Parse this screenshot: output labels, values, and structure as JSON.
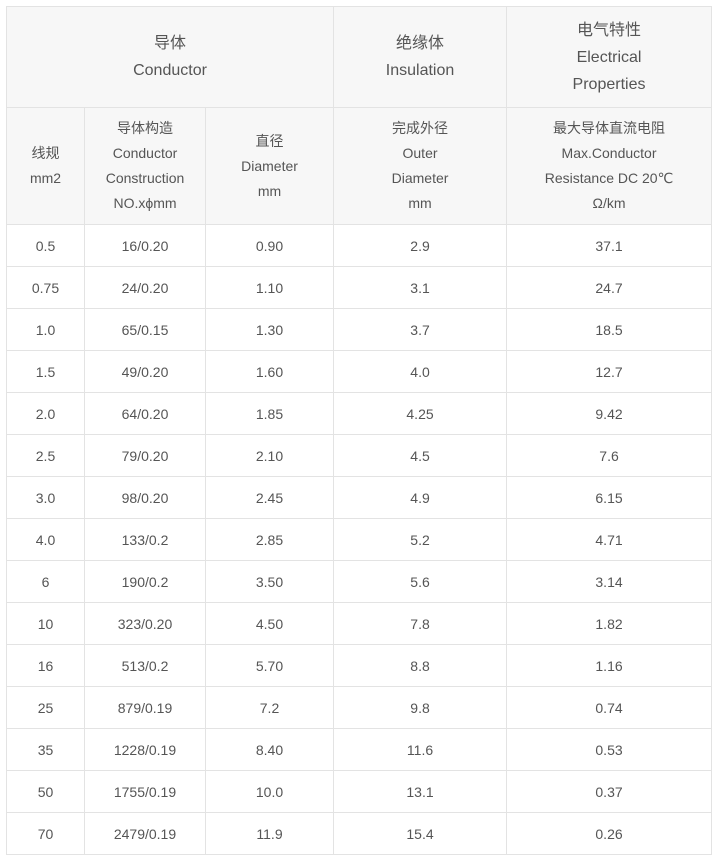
{
  "table": {
    "header_top": [
      {
        "lines": [
          "导体",
          "Conductor"
        ]
      },
      {
        "lines": [
          "绝缘体",
          "Insulation"
        ]
      },
      {
        "lines": [
          "电气特性",
          "Electrical",
          "Properties"
        ]
      }
    ],
    "header_sub": [
      {
        "lines": [
          "线规",
          "mm2"
        ]
      },
      {
        "lines": [
          "导体构造",
          "Conductor",
          "Construction",
          "NO.xϕmm"
        ]
      },
      {
        "lines": [
          "直径",
          "Diameter",
          "mm"
        ]
      },
      {
        "lines": [
          "完成外径",
          "Outer",
          "Diameter",
          "mm"
        ]
      },
      {
        "lines": [
          "最大导体直流电阻",
          "Max.Conductor",
          "Resistance DC 20℃",
          "Ω/km"
        ]
      }
    ],
    "rows": [
      [
        "0.5",
        "16/0.20",
        "0.90",
        "2.9",
        "37.1"
      ],
      [
        "0.75",
        "24/0.20",
        "1.10",
        "3.1",
        "24.7"
      ],
      [
        "1.0",
        "65/0.15",
        "1.30",
        "3.7",
        "18.5"
      ],
      [
        "1.5",
        "49/0.20",
        "1.60",
        "4.0",
        "12.7"
      ],
      [
        "2.0",
        "64/0.20",
        "1.85",
        "4.25",
        "9.42"
      ],
      [
        "2.5",
        "79/0.20",
        "2.10",
        "4.5",
        "7.6"
      ],
      [
        "3.0",
        "98/0.20",
        "2.45",
        "4.9",
        "6.15"
      ],
      [
        "4.0",
        "133/0.2",
        "2.85",
        "5.2",
        "4.71"
      ],
      [
        "6",
        "190/0.2",
        "3.50",
        "5.6",
        "3.14"
      ],
      [
        "10",
        "323/0.20",
        "4.50",
        "7.8",
        "1.82"
      ],
      [
        "16",
        "513/0.2",
        "5.70",
        "8.8",
        "1.16"
      ],
      [
        "25",
        "879/0.19",
        "7.2",
        "9.8",
        "0.74"
      ],
      [
        "35",
        "1228/0.19",
        "8.40",
        "11.6",
        "0.53"
      ],
      [
        "50",
        "1755/0.19",
        "10.0",
        "13.1",
        "0.37"
      ],
      [
        "70",
        "2479/0.19",
        "11.9",
        "15.4",
        "0.26"
      ]
    ]
  }
}
